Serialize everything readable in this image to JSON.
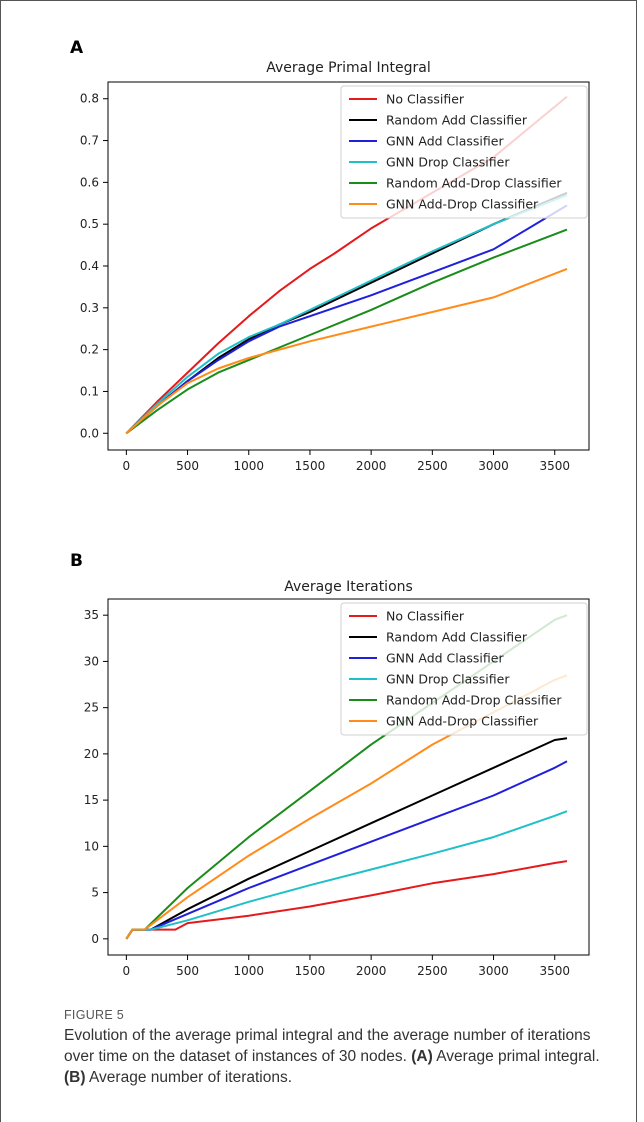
{
  "panels": [
    {
      "letter": "A",
      "chart_data": {
        "type": "line",
        "title": "Average Primal Integral",
        "xlabel": "",
        "ylabel": "",
        "xlim": [
          -150,
          3780
        ],
        "ylim": [
          -0.04,
          0.84
        ],
        "xticks": [
          0,
          500,
          1000,
          1500,
          2000,
          2500,
          3000,
          3500
        ],
        "yticks": [
          0.0,
          0.1,
          0.2,
          0.3,
          0.4,
          0.5,
          0.6,
          0.7,
          0.8
        ],
        "ytick_labels": [
          "0.0",
          "0.1",
          "0.2",
          "0.3",
          "0.4",
          "0.5",
          "0.6",
          "0.7",
          "0.8"
        ],
        "grid": false,
        "legend_position": "upper-right",
        "series": [
          {
            "name": "No Classifier",
            "color": "#e41a1c",
            "x": [
              0,
              250,
              500,
              750,
              1000,
              1250,
              1500,
              1700,
              2000,
              2500,
              3000,
              3600
            ],
            "y": [
              0,
              0.075,
              0.145,
              0.215,
              0.28,
              0.34,
              0.393,
              0.43,
              0.49,
              0.575,
              0.66,
              0.805
            ]
          },
          {
            "name": "Random Add Classifier",
            "color": "#000000",
            "x": [
              0,
              250,
              500,
              750,
              1000,
              1250,
              1500,
              2000,
              2500,
              3000,
              3600
            ],
            "y": [
              0,
              0.065,
              0.125,
              0.18,
              0.225,
              0.26,
              0.29,
              0.36,
              0.43,
              0.5,
              0.575
            ]
          },
          {
            "name": "GNN Add Classifier",
            "color": "#1f1fdc",
            "x": [
              0,
              250,
              500,
              750,
              1000,
              1250,
              1500,
              2000,
              2500,
              3000,
              3600
            ],
            "y": [
              0,
              0.065,
              0.125,
              0.175,
              0.22,
              0.255,
              0.28,
              0.33,
              0.385,
              0.44,
              0.545
            ]
          },
          {
            "name": "GNN Drop Classifier",
            "color": "#20c0c8",
            "x": [
              0,
              250,
              500,
              750,
              1000,
              1250,
              1500,
              2000,
              2500,
              3000,
              3600
            ],
            "y": [
              0,
              0.07,
              0.135,
              0.19,
              0.23,
              0.26,
              0.295,
              0.365,
              0.435,
              0.5,
              0.57
            ]
          },
          {
            "name": "Random Add-Drop Classifier",
            "color": "#1a8c1a",
            "x": [
              0,
              250,
              500,
              750,
              1000,
              1250,
              1500,
              2000,
              2500,
              3000,
              3600
            ],
            "y": [
              0,
              0.055,
              0.105,
              0.145,
              0.175,
              0.205,
              0.235,
              0.295,
              0.36,
              0.42,
              0.487
            ]
          },
          {
            "name": "GNN Add-Drop Classifier",
            "color": "#ff8c1a",
            "x": [
              0,
              250,
              500,
              750,
              1000,
              1250,
              1500,
              2000,
              2500,
              3000,
              3600
            ],
            "y": [
              0,
              0.065,
              0.12,
              0.155,
              0.18,
              0.2,
              0.22,
              0.255,
              0.29,
              0.325,
              0.393
            ]
          }
        ]
      }
    },
    {
      "letter": "B",
      "chart_data": {
        "type": "line",
        "title": "Average Iterations",
        "xlabel": "",
        "ylabel": "",
        "xlim": [
          -150,
          3780
        ],
        "ylim": [
          -1.75,
          36.75
        ],
        "xticks": [
          0,
          500,
          1000,
          1500,
          2000,
          2500,
          3000,
          3500
        ],
        "yticks": [
          0,
          5,
          10,
          15,
          20,
          25,
          30,
          35
        ],
        "ytick_labels": [
          "0",
          "5",
          "10",
          "15",
          "20",
          "25",
          "30",
          "35"
        ],
        "grid": false,
        "legend_position": "upper-right",
        "series": [
          {
            "name": "No Classifier",
            "color": "#e41a1c",
            "x": [
              0,
              50,
              400,
              500,
              1000,
              1500,
              2000,
              2500,
              3000,
              3500,
              3600
            ],
            "y": [
              0,
              1,
              1,
              1.7,
              2.5,
              3.5,
              4.7,
              6.0,
              7.0,
              8.2,
              8.4
            ]
          },
          {
            "name": "Random Add Classifier",
            "color": "#000000",
            "x": [
              0,
              50,
              200,
              500,
              1000,
              1500,
              2000,
              2500,
              3000,
              3500,
              3600
            ],
            "y": [
              0,
              1,
              1,
              3.2,
              6.5,
              9.5,
              12.5,
              15.5,
              18.5,
              21.5,
              21.7
            ]
          },
          {
            "name": "GNN Add Classifier",
            "color": "#1f1fdc",
            "x": [
              0,
              50,
              200,
              500,
              1000,
              1500,
              2000,
              2500,
              3000,
              3500,
              3600
            ],
            "y": [
              0,
              1,
              1,
              2.7,
              5.5,
              8.0,
              10.5,
              13.0,
              15.5,
              18.5,
              19.2
            ]
          },
          {
            "name": "GNN Drop Classifier",
            "color": "#20c0c8",
            "x": [
              0,
              50,
              200,
              500,
              1000,
              1500,
              2000,
              2500,
              3000,
              3500,
              3600
            ],
            "y": [
              0,
              1,
              1,
              2.0,
              4.0,
              5.8,
              7.5,
              9.2,
              11.0,
              13.3,
              13.8
            ]
          },
          {
            "name": "Random Add-Drop Classifier",
            "color": "#1a8c1a",
            "x": [
              0,
              50,
              150,
              500,
              1000,
              1500,
              2000,
              2500,
              3000,
              3500,
              3600
            ],
            "y": [
              0,
              1,
              1,
              5.5,
              11.0,
              16.0,
              21.0,
              25.5,
              30.0,
              34.5,
              35.0
            ]
          },
          {
            "name": "GNN Add-Drop Classifier",
            "color": "#ff8c1a",
            "x": [
              0,
              50,
              150,
              500,
              1000,
              1500,
              2000,
              2500,
              3000,
              3500,
              3600
            ],
            "y": [
              0,
              1,
              1,
              4.5,
              9.0,
              13.0,
              16.8,
              21.0,
              24.5,
              28.0,
              28.5
            ]
          }
        ]
      }
    }
  ],
  "caption": {
    "label": "FIGURE 5",
    "text_main": "Evolution of the average primal integral and the average number of iterations over time on the dataset of instances of 30 nodes.",
    "a_label": "(A)",
    "a_text": "Average primal integral.",
    "b_label": "(B)",
    "b_text": "Average number of iterations."
  }
}
